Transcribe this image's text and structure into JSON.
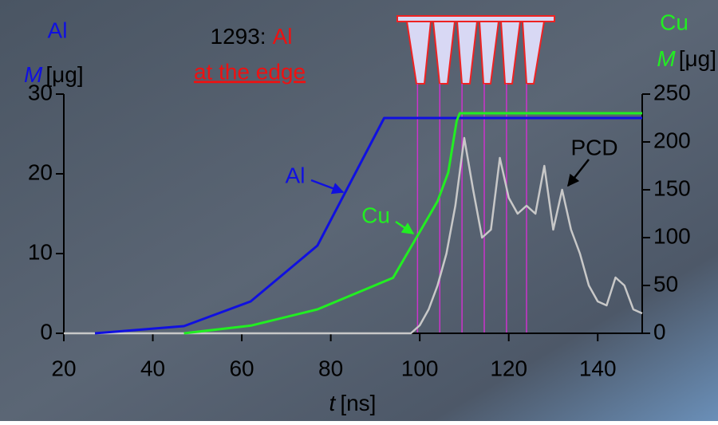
{
  "chart_data": {
    "type": "line",
    "title": "1293:",
    "title_highlight": "Al",
    "subtitle": "at the edge",
    "y_label": {
      "name": "Al",
      "symbol": "M",
      "unit": "[μg]"
    },
    "y2_label": {
      "name": "Cu",
      "symbol": "M",
      "unit": "[μg]"
    },
    "x_label": {
      "symbol": "t",
      "unit": "[ns]"
    },
    "xlim": [
      20,
      150
    ],
    "xticks": [
      20,
      40,
      60,
      80,
      100,
      120,
      140
    ],
    "ylim": [
      0,
      30
    ],
    "yticks": [
      0,
      10,
      20,
      30
    ],
    "y2lim": [
      0,
      250
    ],
    "y2ticks": [
      0,
      50,
      100,
      150,
      200,
      250
    ],
    "series": [
      {
        "name": "Al",
        "color": "#1010e0",
        "axis": "y",
        "x": [
          27,
          47,
          62,
          77,
          92,
          150
        ],
        "values": [
          0,
          0.9,
          4,
          11,
          27,
          27
        ]
      },
      {
        "name": "Cu",
        "color": "#22ee22",
        "axis": "y2",
        "x": [
          47,
          62,
          77,
          94,
          104,
          106.4,
          108.3,
          109,
          150
        ],
        "values": [
          0,
          8,
          25,
          58,
          138,
          168,
          222,
          230,
          230
        ]
      },
      {
        "name": "PCD",
        "color": "#c8c8c8",
        "axis": "y",
        "x": [
          20,
          98,
          100,
          102,
          104,
          106,
          108,
          110,
          112,
          114,
          116,
          118,
          120,
          122,
          124,
          126,
          128,
          130,
          132,
          134,
          136,
          138,
          140,
          142,
          144,
          146,
          148,
          150
        ],
        "values": [
          0,
          0,
          1,
          3,
          6,
          10,
          16,
          24.5,
          18,
          12,
          13,
          22,
          17,
          15,
          16,
          15,
          21,
          13,
          18,
          13,
          10,
          6,
          4,
          3.5,
          7,
          6,
          3,
          2.5
        ]
      }
    ],
    "frame_times": [
      99.5,
      104.5,
      109.5,
      114.5,
      119.5,
      124
    ],
    "frame_color": "#cc33cc",
    "annotations": [
      "Al",
      "Cu",
      "PCD"
    ]
  }
}
